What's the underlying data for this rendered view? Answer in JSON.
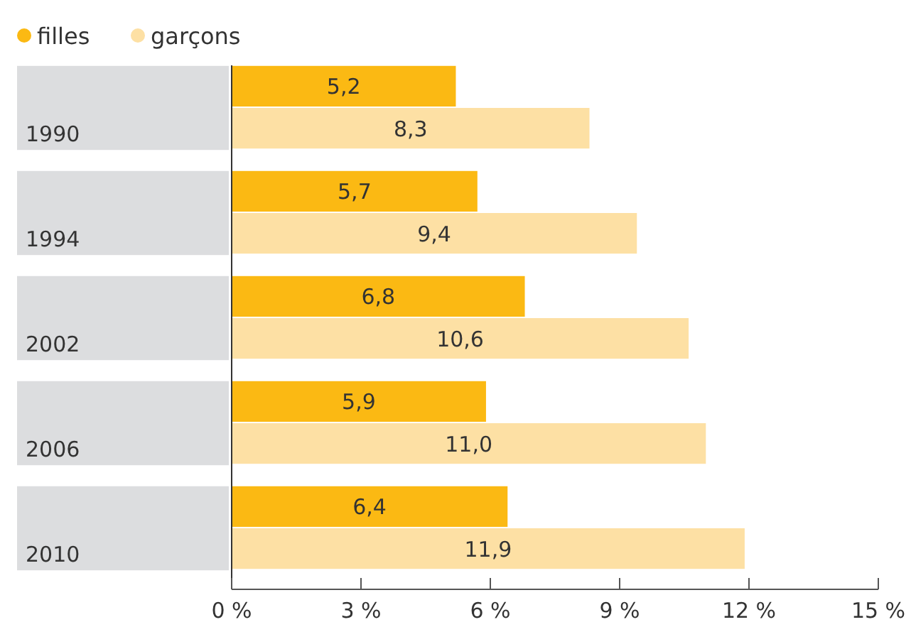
{
  "chart_data": {
    "type": "bar",
    "orientation": "horizontal",
    "categories": [
      "1990",
      "1994",
      "2002",
      "2006",
      "2010"
    ],
    "series": [
      {
        "name": "filles",
        "color": "#fbb913",
        "values": [
          5.2,
          5.7,
          6.8,
          5.9,
          6.4
        ],
        "value_labels": [
          "5,2",
          "5,7",
          "6,8",
          "5,9",
          "6,4"
        ]
      },
      {
        "name": "garçons",
        "color": "#fde0a4",
        "values": [
          8.3,
          9.4,
          10.6,
          11.0,
          11.9
        ],
        "value_labels": [
          "8,3",
          "9,4",
          "10,6",
          "11,0",
          "11,9"
        ]
      }
    ],
    "xlim": [
      0,
      15
    ],
    "xticks": [
      {
        "value": 0,
        "label": "0 %"
      },
      {
        "value": 3,
        "label": "3 %"
      },
      {
        "value": 6,
        "label": "6 %"
      },
      {
        "value": 9,
        "label": "9 %"
      },
      {
        "value": 12,
        "label": "12 %"
      },
      {
        "value": 15,
        "label": "15 %"
      }
    ],
    "ref_lines": [
      {
        "axis": "x",
        "value": 0,
        "color": "#333333"
      }
    ],
    "legend": "top left",
    "grid": false
  }
}
